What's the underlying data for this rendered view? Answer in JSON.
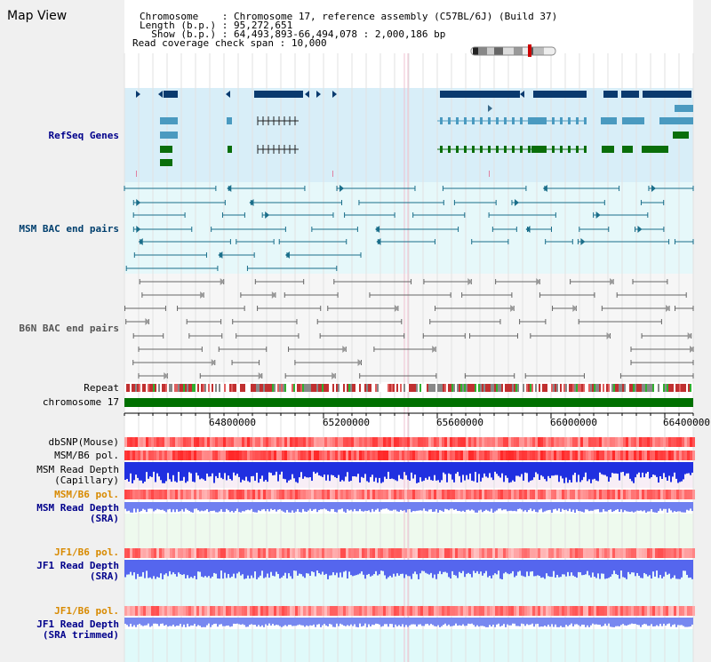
{
  "title": "Map View",
  "header": {
    "chromosome_key": "Chromosome    ",
    "chromosome_value": "Chromosome 17, reference assembly (C57BL/6J) (Build 37)",
    "length_key": "Length (b.p.)",
    "length_value": "95,272,651",
    "show_key": "  Show (b.p.)",
    "show_value": "64,493,893-66,494,078 : 2,000,186 bp",
    "coverage_key": "Read coverage check span",
    "coverage_value": "10,000"
  },
  "tracks": {
    "refseq": "RefSeq Genes",
    "msm_bac": "MSM BAC end pairs",
    "b6n_bac": "B6N BAC end pairs",
    "repeat": "Repeat",
    "chromosome": "chromosome 17",
    "dbsnp": "dbSNP(Mouse)",
    "msm_pol_1": "MSM/B6 pol.",
    "msm_depth_cap_1": "MSM Read Depth",
    "msm_depth_cap_2": "(Capillary)",
    "msm_pol_2": "MSM/B6 pol.",
    "msm_depth_sra_1": "MSM Read Depth",
    "msm_depth_sra_2": "(SRA)",
    "jf1_pol_1": "JF1/B6 pol.",
    "jf1_depth_1": "JF1 Read Depth",
    "jf1_depth_2": "(SRA)",
    "jf1_pol_2": "JF1/B6 pol.",
    "jf1_trim_1": "JF1 Read Depth",
    "jf1_trim_2": "(SRA trimmed)"
  },
  "ruler": {
    "ticks": [
      "64800000",
      "65200000",
      "65600000",
      "66000000",
      "66400000"
    ]
  },
  "colors": {
    "panel_bg": "#f0f0f0",
    "navy": "#00008b",
    "teal": "#1a6e8a",
    "gene_dark": "#0a3a6e",
    "gene_light": "#4a9ac0",
    "gene_green": "#0a6e0a",
    "chrom_green": "#007000",
    "orange": "#d88a00",
    "snp_red": "#f04040",
    "depth_blue": "#2030e0",
    "depth_light": "#7080f0"
  }
}
